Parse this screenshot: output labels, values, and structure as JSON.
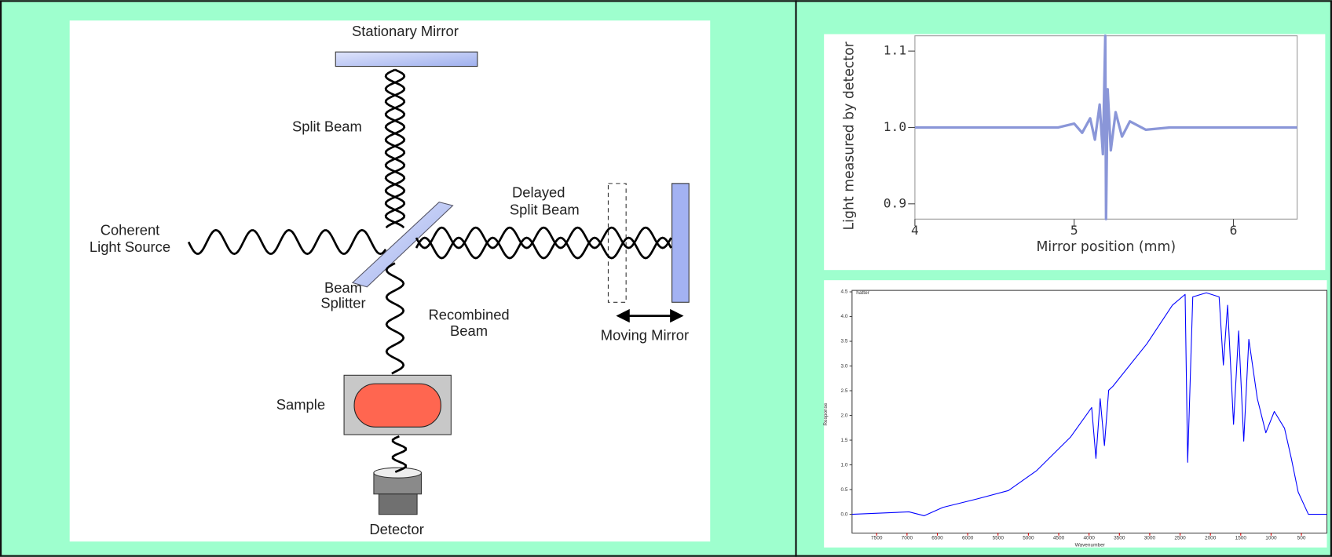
{
  "diagram": {
    "labels": {
      "stationary_mirror": "Stationary Mirror",
      "split_beam": "Split Beam",
      "coherent_light_source": [
        "Coherent",
        "Light Source"
      ],
      "delayed_split_beam": [
        "Delayed",
        "Split Beam"
      ],
      "beam_splitter": [
        "Beam",
        "Splitter"
      ],
      "recombined_beam": [
        "Recombined",
        "Beam"
      ],
      "moving_mirror": "Moving Mirror",
      "sample": "Sample",
      "detector": "Detector"
    }
  },
  "chart_data": [
    {
      "type": "line",
      "x_label": "Mirror position (mm)",
      "y_label": "Light measured by detector",
      "x": [
        4.0,
        4.5,
        4.9,
        5.0,
        5.05,
        5.1,
        5.13,
        5.16,
        5.18,
        5.195,
        5.2,
        5.21,
        5.23,
        5.26,
        5.3,
        5.35,
        5.45,
        5.6,
        6.0,
        6.4
      ],
      "series": [
        {
          "color": "#8a96d8",
          "values": [
            1.0,
            1.0,
            1.0,
            1.005,
            0.993,
            1.012,
            0.984,
            1.03,
            0.965,
            1.12,
            0.88,
            1.05,
            0.97,
            1.02,
            0.988,
            1.008,
            0.997,
            1.0,
            1.0,
            1.0
          ]
        }
      ],
      "xlim": [
        4,
        6.4
      ],
      "ylim": [
        0.88,
        1.12
      ],
      "xticks": [
        4,
        5,
        6
      ],
      "yticks": [
        0.9,
        {
          "value": 1,
          "label": "1.0"
        },
        1.1
      ]
    },
    {
      "type": "line",
      "x_label": "Wavenumber",
      "y_label": "Response",
      "x": [
        7906,
        6968,
        6716,
        6408,
        5847,
        5329,
        4867,
        4307,
        3957,
        3887,
        3817,
        3747,
        3677,
        3607,
        3046,
        2627,
        2416,
        2374,
        2290,
        2066,
        1856,
        1786,
        1716,
        1618,
        1534,
        1450,
        1366,
        1226,
        1086,
        946,
        778,
        666,
        553,
        385,
        80
      ],
      "series": [
        {
          "name": "hatter",
          "color": "#0000ff",
          "values": [
            0,
            0.05,
            -0.03,
            0.14,
            0.31,
            0.48,
            0.88,
            1.56,
            2.16,
            1.13,
            2.34,
            1.39,
            2.51,
            2.59,
            3.45,
            4.23,
            4.45,
            1.05,
            4.4,
            4.48,
            4.4,
            3.02,
            4.23,
            1.82,
            3.71,
            1.48,
            3.54,
            2.34,
            1.65,
            2.08,
            1.74,
            1.13,
            0.45,
            0,
            0
          ]
        }
      ],
      "xlim": [
        7906,
        80
      ],
      "ylim": [
        -0.38,
        4.53
      ],
      "xticks": [
        7500,
        7000,
        6500,
        6000,
        5500,
        5000,
        4500,
        4000,
        3500,
        3000,
        2500,
        2000,
        1500,
        1000,
        500
      ],
      "yticks": [
        {
          "value": 0,
          "label": "0.0"
        },
        0.5,
        {
          "value": 1,
          "label": "1.0"
        },
        1.5,
        {
          "value": 2,
          "label": "2.0"
        },
        2.5,
        {
          "value": 3,
          "label": "3.0"
        },
        3.5,
        {
          "value": 4,
          "label": "4.0"
        },
        4.5
      ]
    }
  ]
}
